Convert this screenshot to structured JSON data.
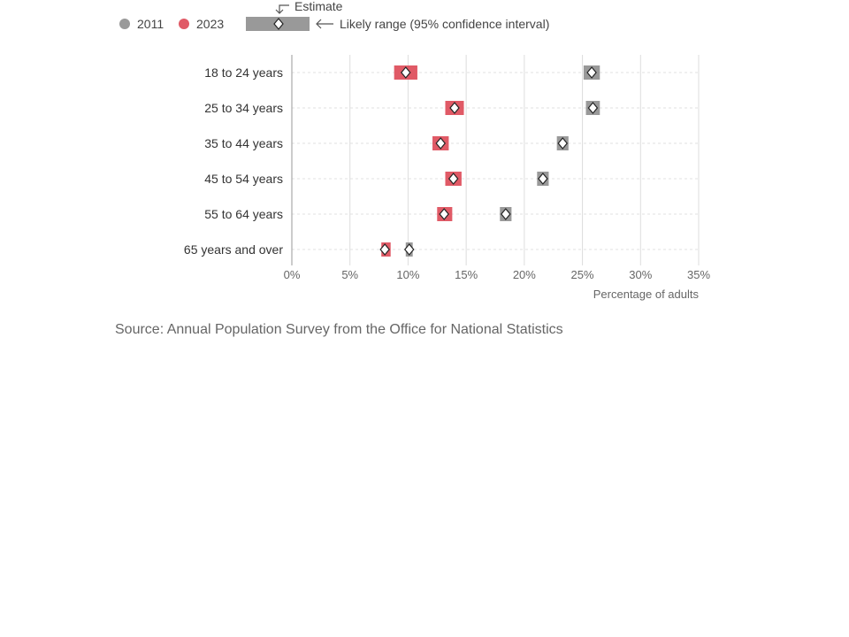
{
  "chart_data": {
    "type": "dot-range",
    "categories": [
      "18 to 24 years",
      "25 to 34 years",
      "35 to 44 years",
      "45 to 54 years",
      "55 to 64 years",
      "65 years and over"
    ],
    "series": [
      {
        "name": "2011",
        "color": "#999999",
        "estimate": [
          25.8,
          25.9,
          23.3,
          21.6,
          18.4,
          10.1
        ],
        "low": [
          25.1,
          25.3,
          22.8,
          21.1,
          17.9,
          9.8
        ],
        "high": [
          26.5,
          26.5,
          23.8,
          22.1,
          18.9,
          10.4
        ]
      },
      {
        "name": "2023",
        "color": "#e05a66",
        "estimate": [
          9.8,
          14.0,
          12.8,
          13.9,
          13.1,
          8.0
        ],
        "low": [
          8.8,
          13.2,
          12.1,
          13.2,
          12.5,
          7.7
        ],
        "high": [
          10.8,
          14.8,
          13.5,
          14.6,
          13.8,
          8.5
        ]
      }
    ],
    "xlim": [
      0,
      35
    ],
    "xticks": [
      0,
      5,
      10,
      15,
      20,
      25,
      30,
      35
    ],
    "xtick_labels": [
      "0%",
      "5%",
      "10%",
      "15%",
      "20%",
      "25%",
      "30%",
      "35%"
    ],
    "xlabel": "Percentage of adults",
    "grid": true,
    "legend": {
      "placement": "top-left",
      "series_labels": [
        "2011",
        "2023"
      ],
      "estimate_label": "Estimate",
      "range_label": "Likely range (95% confidence interval)"
    }
  },
  "source": "Source: Annual Population Survey from the Office for National Statistics"
}
